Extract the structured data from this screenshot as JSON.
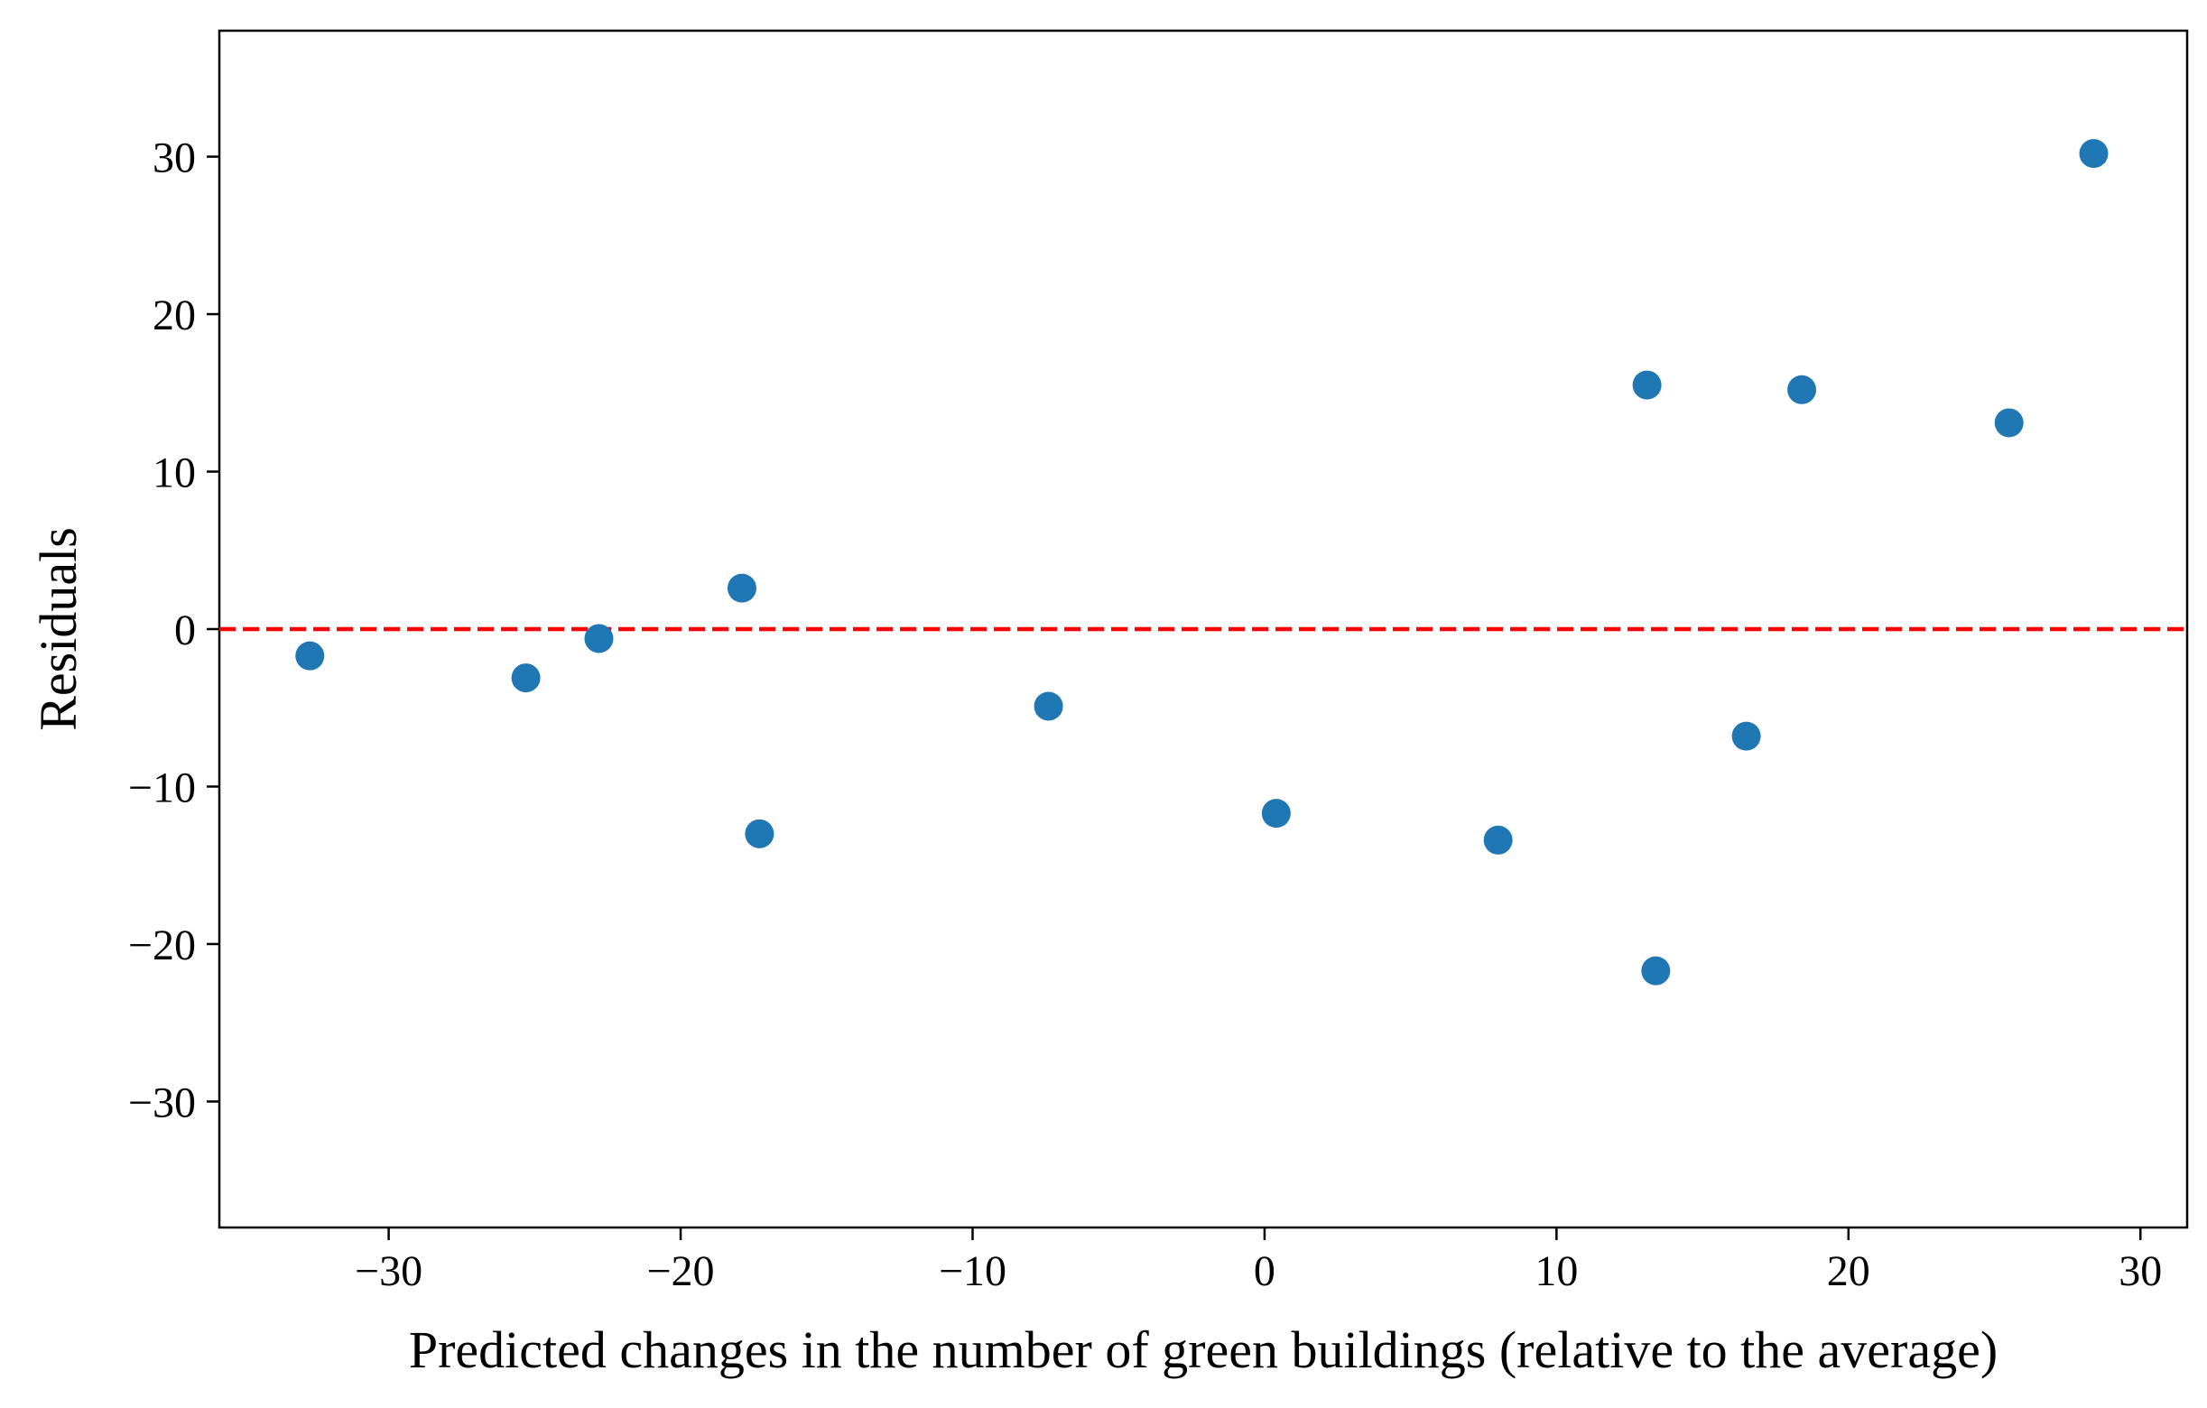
{
  "chart_data": {
    "type": "scatter",
    "title": "",
    "xlabel": "Predicted changes in the number of green buildings (relative to the average)",
    "ylabel": "Residuals",
    "xlim": [
      -35.8,
      31.6
    ],
    "ylim": [
      -38,
      38
    ],
    "xticks": [
      -30,
      -20,
      -10,
      0,
      10,
      20,
      30
    ],
    "yticks": [
      -30,
      -20,
      -10,
      0,
      10,
      20,
      30
    ],
    "xtick_labels": [
      "−30",
      "−20",
      "−10",
      "0",
      "10",
      "20",
      "30"
    ],
    "ytick_labels": [
      "−30",
      "−20",
      "−10",
      "0",
      "10",
      "20",
      "30"
    ],
    "grid": false,
    "legend": false,
    "colors": {
      "points": "#1f77b4",
      "reference_line": "#ff0000",
      "axes": "#000000"
    },
    "reference_line": {
      "y": 0,
      "style": "dashed"
    },
    "series": [
      {
        "x": [
          -32.7,
          -25.3,
          -22.8,
          -17.9,
          -17.3,
          -7.4,
          0.4,
          8.0,
          13.1,
          13.4,
          16.5,
          18.4,
          25.5,
          28.4
        ],
        "y": [
          -1.7,
          -3.1,
          -0.6,
          2.6,
          -13.0,
          -4.9,
          -11.7,
          -13.4,
          15.5,
          -21.7,
          -6.8,
          15.2,
          13.1,
          30.2
        ]
      }
    ]
  }
}
